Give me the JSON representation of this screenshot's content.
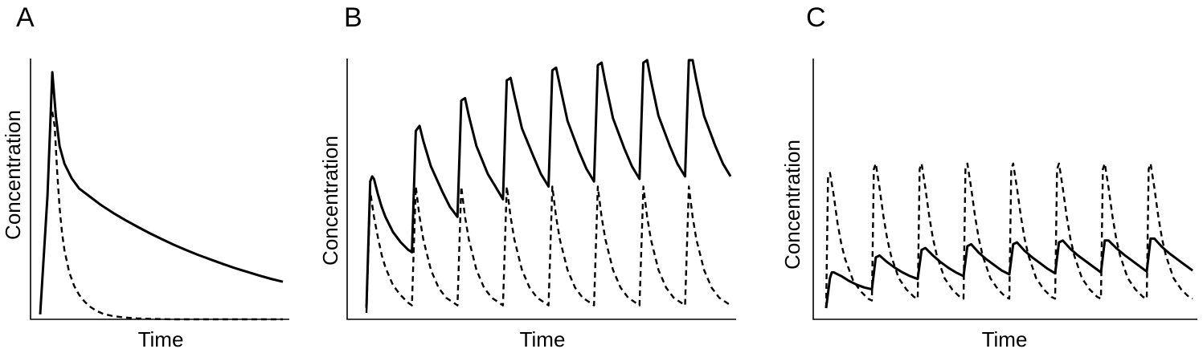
{
  "chart_data": [
    {
      "type": "line",
      "panel_label": "A",
      "xlabel": "Time",
      "ylabel": "Concentration",
      "xlim": [
        0,
        100
      ],
      "ylim": [
        0,
        100
      ],
      "grid": false,
      "legend": "none",
      "series": [
        {
          "style": "solid",
          "color": "#000000",
          "x": [
            0,
            3,
            5,
            6.5,
            8,
            10,
            13,
            16,
            20,
            25,
            30,
            35,
            40,
            45,
            50,
            55,
            60,
            65,
            70,
            75,
            80,
            85,
            90,
            95,
            100
          ],
          "y": [
            2,
            50,
            100,
            82,
            70,
            63,
            57,
            53,
            50,
            46.3,
            43.1,
            40.2,
            37.5,
            34.9,
            32.5,
            30.2,
            28.1,
            26.1,
            24.3,
            22.5,
            20.8,
            19.3,
            17.8,
            16.4,
            15.2
          ]
        },
        {
          "style": "dashed",
          "color": "#000000",
          "x": [
            5,
            6,
            7,
            8,
            9,
            10,
            12,
            14,
            16,
            18,
            20,
            23,
            26,
            30,
            35,
            40,
            45,
            50,
            55,
            60,
            70,
            80,
            90,
            100
          ],
          "y": [
            84,
            78,
            60,
            45,
            35,
            28,
            19,
            13.5,
            10,
            7.5,
            5.5,
            3.5,
            2.2,
            1.3,
            0.7,
            0.4,
            0.2,
            0.1,
            0,
            0,
            0,
            0,
            0,
            0
          ]
        }
      ]
    },
    {
      "type": "line",
      "panel_label": "B",
      "xlabel": "Time",
      "ylabel": "Concentration",
      "xlim": [
        0,
        100
      ],
      "ylim": [
        0,
        100
      ],
      "grid": false,
      "legend": "none",
      "series": [
        {
          "style": "solid",
          "color": "#000000",
          "x": [
            0,
            1,
            1.5,
            2,
            3,
            4,
            5,
            7,
            9,
            11,
            12,
            12,
            13,
            14,
            15,
            17,
            20,
            22,
            24,
            24,
            25,
            26,
            27,
            29,
            32,
            34,
            36,
            36,
            37,
            38,
            39,
            41,
            44,
            46,
            48,
            48,
            49,
            50,
            51,
            53,
            56,
            58,
            60,
            60,
            61,
            62,
            63,
            65,
            68,
            70,
            72,
            72,
            73,
            74,
            75,
            77,
            80,
            82,
            84,
            84,
            85,
            86,
            87,
            89,
            92,
            94,
            96
          ],
          "y": [
            2,
            52,
            54,
            53,
            47,
            42,
            38,
            32,
            28,
            25,
            24,
            24,
            72,
            74,
            68,
            58,
            48,
            42,
            38,
            38,
            84,
            85,
            78,
            66,
            55,
            50,
            45,
            45,
            92,
            93,
            86,
            73,
            62,
            55,
            50,
            50,
            96,
            97,
            90,
            76,
            64,
            57,
            52,
            52,
            98,
            99,
            91,
            77,
            65,
            58,
            53,
            53,
            99,
            100,
            92,
            78,
            66,
            59,
            54,
            54,
            100,
            100,
            92,
            78,
            66,
            59,
            54
          ]
        },
        {
          "style": "dashed",
          "color": "#000000",
          "x": [
            0,
            1,
            2,
            3,
            4,
            5,
            7,
            9,
            11,
            12,
            12,
            13,
            14,
            15,
            17,
            19,
            21,
            23,
            24,
            24,
            25,
            26,
            27,
            29,
            31,
            33,
            35,
            36,
            36,
            37,
            38,
            39,
            41,
            43,
            45,
            47,
            48,
            48,
            49,
            50,
            51,
            53,
            55,
            57,
            59,
            60,
            60,
            61,
            62,
            63,
            65,
            67,
            69,
            71,
            72,
            72,
            73,
            74,
            75,
            77,
            79,
            81,
            83,
            84,
            84,
            85,
            86,
            87,
            89,
            91,
            93,
            95,
            96
          ],
          "y": [
            0,
            48,
            38,
            30,
            23,
            18,
            11,
            7,
            4,
            3,
            3,
            50,
            38,
            29,
            17,
            10,
            6,
            4,
            3,
            3,
            50,
            38,
            29,
            17,
            10,
            6,
            4,
            3,
            3,
            50,
            38,
            29,
            17,
            10,
            6,
            4,
            3,
            3,
            50,
            38,
            29,
            17,
            10,
            6,
            4,
            3,
            3,
            50,
            38,
            29,
            17,
            10,
            6,
            4,
            3,
            3,
            50,
            38,
            29,
            17,
            10,
            6,
            4,
            3,
            3,
            50,
            38,
            29,
            17,
            10,
            6,
            4,
            3
          ]
        }
      ]
    },
    {
      "type": "line",
      "panel_label": "C",
      "xlabel": "Time",
      "ylabel": "Concentration",
      "xlim": [
        0,
        100
      ],
      "ylim": [
        0,
        100
      ],
      "grid": false,
      "legend": "none",
      "series": [
        {
          "style": "solid",
          "color": "#000000",
          "x": [
            0,
            1,
            1.5,
            2,
            4,
            6,
            8,
            10,
            12,
            12,
            13,
            14,
            16,
            18,
            20,
            22,
            24,
            24,
            25,
            26,
            28,
            30,
            32,
            34,
            36,
            36,
            37,
            38,
            40,
            42,
            44,
            46,
            48,
            48,
            49,
            50,
            52,
            54,
            56,
            58,
            60,
            60,
            61,
            62,
            64,
            66,
            68,
            70,
            72,
            72,
            73,
            74,
            76,
            78,
            80,
            82,
            84,
            84,
            85,
            86,
            88,
            90,
            92,
            94,
            96
          ],
          "y": [
            0,
            16,
            19,
            19,
            17,
            14.5,
            12.5,
            11,
            10,
            10,
            27,
            28,
            24.5,
            21.5,
            19,
            17,
            15.5,
            15.5,
            31,
            32,
            28,
            24.5,
            21.5,
            19,
            17,
            17,
            33,
            34,
            29.5,
            26,
            23,
            20,
            18,
            18,
            34,
            35,
            30.5,
            27,
            24,
            21,
            18.5,
            18.5,
            35,
            36,
            31.5,
            28,
            25,
            22,
            19,
            19,
            36,
            36,
            32,
            28.5,
            25.5,
            22.5,
            19.5,
            19.5,
            37,
            37,
            32.5,
            29,
            26,
            23,
            20
          ]
        },
        {
          "style": "dashed",
          "color": "#000000",
          "x": [
            0,
            0.5,
            1,
            2,
            3,
            4,
            5,
            7,
            9,
            11,
            12,
            12,
            12.5,
            13,
            14,
            15,
            16,
            17,
            19,
            21,
            23,
            24,
            24,
            24.5,
            25,
            26,
            27,
            28,
            29,
            31,
            33,
            35,
            36,
            36,
            36.5,
            37,
            38,
            39,
            40,
            41,
            43,
            45,
            47,
            48,
            48,
            48.5,
            49,
            50,
            51,
            52,
            53,
            55,
            57,
            59,
            60,
            60,
            60.5,
            61,
            62,
            63,
            64,
            65,
            67,
            69,
            71,
            72,
            72,
            72.5,
            73,
            74,
            75,
            76,
            77,
            79,
            81,
            83,
            84,
            84,
            84.5,
            85,
            86,
            87,
            88,
            89,
            91,
            93,
            95,
            96
          ],
          "y": [
            0,
            70,
            72,
            60,
            45,
            34,
            26,
            15,
            9,
            5,
            4,
            4,
            74,
            77,
            64,
            49,
            37,
            28,
            16,
            10,
            6,
            5,
            5,
            74,
            77,
            64,
            49,
            37,
            28,
            16,
            10,
            6,
            5,
            5,
            74,
            77,
            64,
            49,
            37,
            28,
            16,
            10,
            6,
            5,
            5,
            74,
            77,
            64,
            49,
            37,
            28,
            16,
            10,
            6,
            5,
            5,
            74,
            77,
            64,
            49,
            37,
            28,
            16,
            10,
            6,
            5,
            5,
            74,
            77,
            64,
            49,
            37,
            28,
            16,
            10,
            6,
            5,
            5,
            74,
            77,
            64,
            49,
            37,
            28,
            16,
            10,
            6,
            5
          ]
        }
      ]
    }
  ]
}
